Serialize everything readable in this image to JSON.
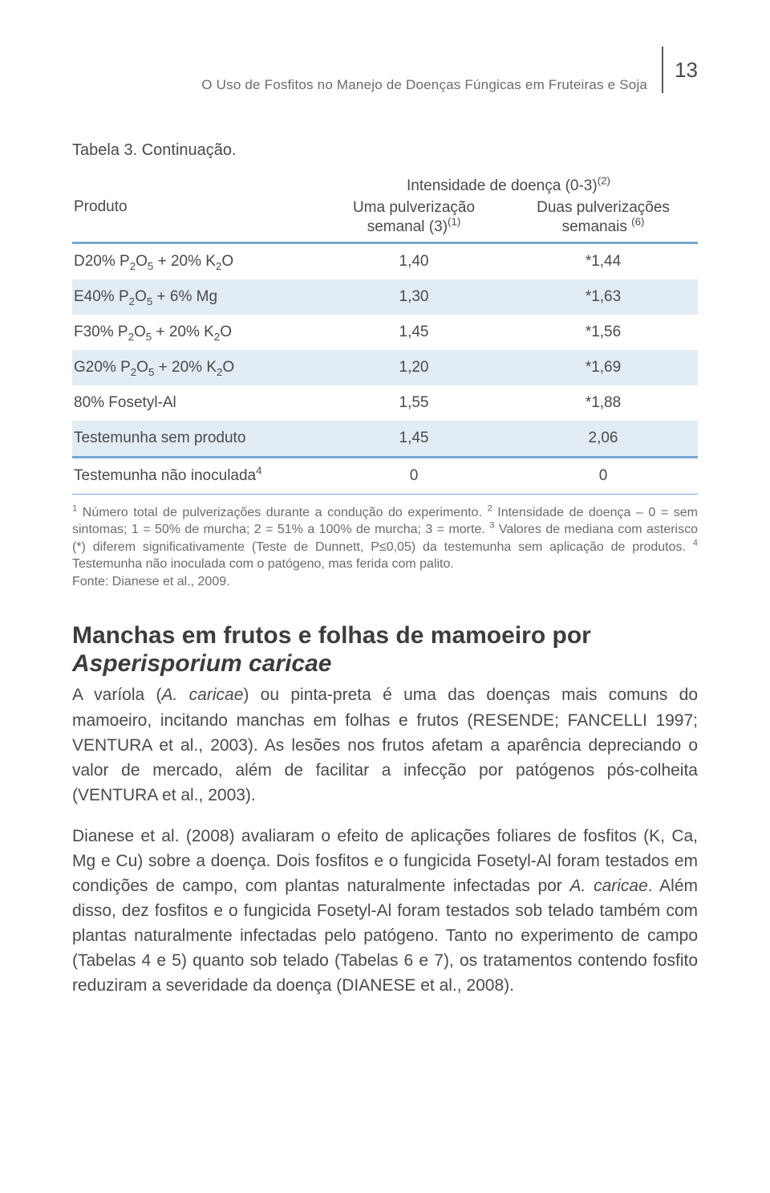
{
  "page": {
    "running_head": "O Uso de Fosfitos no Manejo de Doenças Fúngicas em Fruteiras e Soja",
    "number": "13"
  },
  "table": {
    "caption": "Tabela 3. Continuação.",
    "header": {
      "product": "Produto",
      "group": "Intensidade de doença (0-3)",
      "group_sup": "(2)",
      "col1_line1": "Uma pulverização",
      "col1_line2": "semanal (3)",
      "col1_sup": "(1)",
      "col2_line1": "Duas pulverizações",
      "col2_line2": "semanais ",
      "col2_sup": "(6)"
    },
    "rows": [
      {
        "prod_html": "D20% P<span class='sub'>2</span>O<span class='sub'>5</span> + 20% K<span class='sub'>2</span>O",
        "v1": "1,40",
        "v2": "*1,44",
        "shade": false
      },
      {
        "prod_html": "E40% P<span class='sub'>2</span>O<span class='sub'>5</span> + 6% Mg",
        "v1": "1,30",
        "v2": "*1,63",
        "shade": true
      },
      {
        "prod_html": "F30% P<span class='sub'>2</span>O<span class='sub'>5</span> + 20% K<span class='sub'>2</span>O",
        "v1": "1,45",
        "v2": "*1,56",
        "shade": false
      },
      {
        "prod_html": "G20% P<span class='sub'>2</span>O<span class='sub'>5</span> + 20% K<span class='sub'>2</span>O",
        "v1": "1,20",
        "v2": "*1,69",
        "shade": true
      },
      {
        "prod_html": "80% Fosetyl-Al",
        "v1": "1,55",
        "v2": "*1,88",
        "shade": false
      },
      {
        "prod_html": "Testemunha sem produto",
        "v1": "1,45",
        "v2": "2,06",
        "shade": true,
        "midrule": true
      },
      {
        "prod_html": "Testemunha não inoculada<span class='sup'>4</span>",
        "v1": "0",
        "v2": "0",
        "shade": false,
        "thinrule": true
      }
    ],
    "note_html": "<span class='sup'>1</span> Número total de pulverizações durante a condução do experimento. <span class='sup'>2</span> Intensidade de doença – 0 = sem sintomas; 1 = 50% de murcha; 2 = 51% a 100% de murcha; 3 = morte. <span class='sup'>3</span> Valores de mediana com asterisco (*) diferem significativamente (Teste de Dunnett, P≤0,05) da testemunha sem aplicação de produtos. <span class='sup'>4</span> Testemunha não inoculada com o patógeno, mas ferida com palito.",
    "note_source": "Fonte: Dianese et al., 2009."
  },
  "section": {
    "title_line1": "Manchas em frutos e folhas de mamoeiro por ",
    "title_line2": "Asperisporium caricae"
  },
  "para1_html": "A varíola (<span class='ital'>A. caricae</span>) ou pinta-preta é uma das doenças mais comuns do mamoeiro, incitando manchas em folhas e frutos (RESENDE; FANCELLI 1997; VENTURA et al., 2003). As lesões nos frutos afetam a aparência depreciando o valor de mercado, além de facilitar a infecção por patógenos pós-colheita (VENTURA et al., 2003).",
  "para2_html": "Dianese et al. (2008) avaliaram o efeito de aplicações foliares de fosfitos (K, Ca, Mg e Cu) sobre a doença. Dois fosfitos e o fungicida Fosetyl-Al foram testados em condições de campo, com plantas naturalmente infectadas por <span class='ital'>A. caricae</span>. Além disso, dez fosfitos e o fungicida Fosetyl-Al foram testados sob telado também com plantas naturalmente infectadas pelo patógeno. Tanto no experimento de campo (Tabelas 4 e 5) quanto sob telado (Tabelas 6 e 7), os tratamentos contendo fosfito reduziram a severidade da doença (DIANESE et al., 2008).",
  "colors": {
    "rule": "#78a7d2",
    "shade": "#e2ecf4",
    "text": "#4a4a4a",
    "text_light": "#6b6b6b"
  },
  "typography": {
    "body_pt": 21,
    "note_pt": 16,
    "caption_pt": 20,
    "h2_pt": 30
  }
}
